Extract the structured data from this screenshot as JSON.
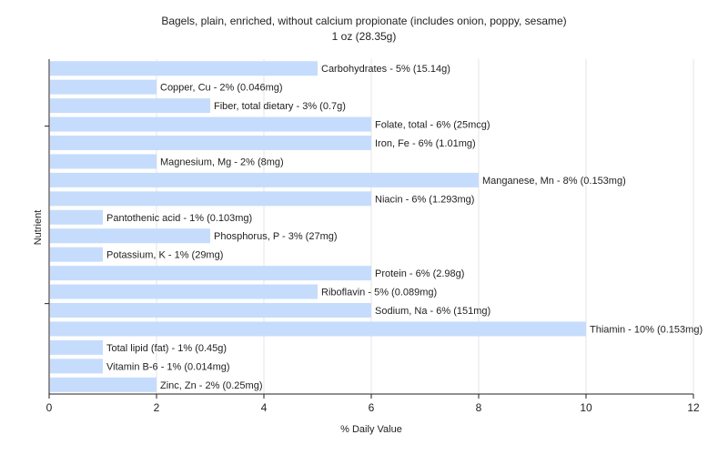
{
  "chart_data": {
    "type": "bar",
    "orientation": "horizontal",
    "title": "Bagels, plain, enriched, without calcium propionate (includes onion, poppy, sesame)",
    "subtitle": "1 oz (28.35g)",
    "xlabel": "% Daily Value",
    "ylabel": "Nutrient",
    "xlim": [
      0,
      12
    ],
    "xticks": [
      0,
      2,
      4,
      6,
      8,
      10,
      12
    ],
    "grid": true,
    "bar_color": "#c6dcfd",
    "categories": [
      "Carbohydrates",
      "Copper, Cu",
      "Fiber, total dietary",
      "Folate, total",
      "Iron, Fe",
      "Magnesium, Mg",
      "Manganese, Mn",
      "Niacin",
      "Pantothenic acid",
      "Phosphorus, P",
      "Potassium, K",
      "Protein",
      "Riboflavin",
      "Sodium, Na",
      "Thiamin",
      "Total lipid (fat)",
      "Vitamin B-6",
      "Zinc, Zn"
    ],
    "values": [
      5,
      2,
      3,
      6,
      6,
      2,
      8,
      6,
      1,
      3,
      1,
      6,
      5,
      6,
      10,
      1,
      1,
      2
    ],
    "bar_labels": [
      "Carbohydrates - 5% (15.14g)",
      "Copper, Cu - 2% (0.046mg)",
      "Fiber, total dietary - 3% (0.7g)",
      "Folate, total - 6% (25mcg)",
      "Iron, Fe - 6% (1.01mg)",
      "Magnesium, Mg - 2% (8mg)",
      "Manganese, Mn - 8% (0.153mg)",
      "Niacin - 6% (1.293mg)",
      "Pantothenic acid - 1% (0.103mg)",
      "Phosphorus, P - 3% (27mg)",
      "Potassium, K - 1% (29mg)",
      "Protein - 6% (2.98g)",
      "Riboflavin - 5% (0.089mg)",
      "Sodium, Na - 6% (151mg)",
      "Thiamin - 10% (0.153mg)",
      "Total lipid (fat) - 1% (0.45g)",
      "Vitamin B-6 - 1% (0.014mg)",
      "Zinc, Zn - 2% (0.25mg)"
    ]
  }
}
